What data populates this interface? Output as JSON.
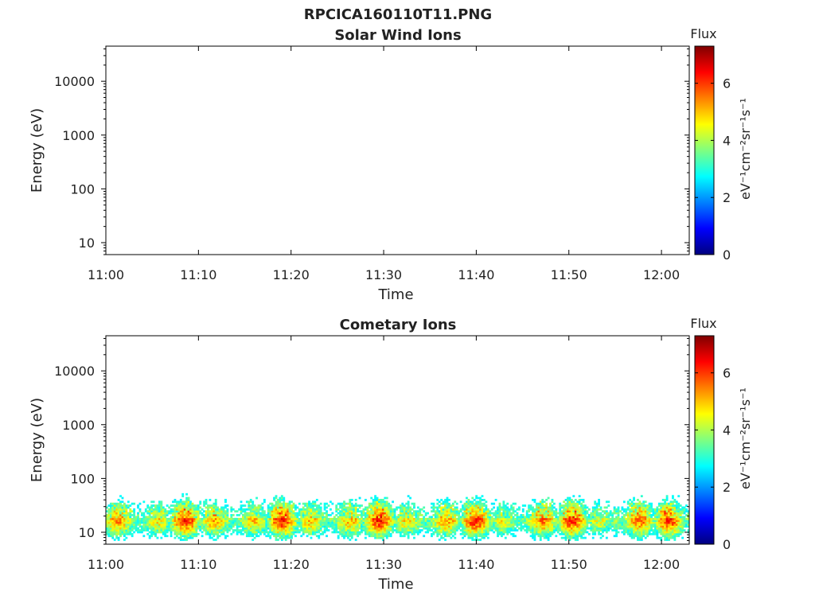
{
  "figure_title": "RPCICA160110T11.PNG",
  "chart_data": [
    {
      "type": "heatmap",
      "title": "Solar Wind Ions",
      "xlabel": "Time",
      "ylabel": "Energy (eV)",
      "x_ticks": [
        "11:00",
        "11:10",
        "11:20",
        "11:30",
        "11:40",
        "11:50",
        "12:00"
      ],
      "y_ticks": [
        "10",
        "100",
        "1000",
        "10000"
      ],
      "y_scale": "log",
      "ylim": [
        6,
        45000
      ],
      "xlim": [
        "11:00",
        "12:03"
      ],
      "colorbar": {
        "label": "Flux",
        "units": "eV⁻¹cm⁻²sr⁻¹s⁻¹",
        "ticks": [
          "0",
          "2",
          "4",
          "6"
        ],
        "range": [
          0,
          7.3
        ],
        "colormap": "jet"
      },
      "flux_band": null
    },
    {
      "type": "heatmap",
      "title": "Cometary Ions",
      "xlabel": "Time",
      "ylabel": "Energy (eV)",
      "x_ticks": [
        "11:00",
        "11:10",
        "11:20",
        "11:30",
        "11:40",
        "11:50",
        "12:00"
      ],
      "y_ticks": [
        "10",
        "100",
        "1000",
        "10000"
      ],
      "y_scale": "log",
      "ylim": [
        6,
        45000
      ],
      "xlim": [
        "11:00",
        "12:03"
      ],
      "colorbar": {
        "label": "Flux",
        "units": "eV⁻¹cm⁻²sr⁻¹s⁻¹",
        "ticks": [
          "0",
          "2",
          "4",
          "6"
        ],
        "range": [
          0,
          7.3
        ],
        "colormap": "jet"
      },
      "flux_band": {
        "energy_range_eV": [
          7,
          80
        ],
        "peak_energy_eV": 18,
        "peak_flux": 6.3,
        "time_range": [
          "11:00",
          "12:03"
        ]
      }
    }
  ]
}
